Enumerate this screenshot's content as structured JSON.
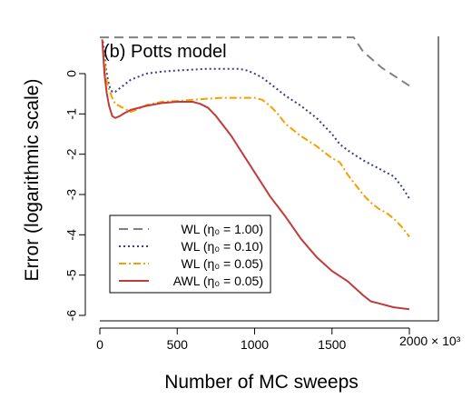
{
  "chart_data": {
    "type": "line",
    "panel_label": "(b) Potts model",
    "xlabel": "Number of MC sweeps",
    "ylabel": "Error (logarithmic scale)",
    "x_multiplier": "2000 × 10³",
    "x_ticks": [
      "0",
      "500",
      "1000",
      "1500",
      "2000"
    ],
    "y_ticks": [
      "0",
      "-1",
      "-2",
      "-3",
      "-4",
      "-5",
      "-6"
    ],
    "xlim": [
      0,
      2000
    ],
    "ylim": [
      -6.1,
      0.9
    ],
    "legend_position": "bottom-left",
    "series": [
      {
        "name": "WL  (η₀ = 1.00)",
        "color": "#808080",
        "dash": "long-dash",
        "x": [
          0,
          1640,
          1700,
          1760,
          1820,
          1880,
          1940,
          2000
        ],
        "y": [
          0.9,
          0.9,
          0.55,
          0.35,
          0.15,
          0.0,
          -0.15,
          -0.3
        ]
      },
      {
        "name": "WL  (η₀ = 0.10)",
        "color": "#3b3b8f",
        "dash": "dotted",
        "x": [
          20,
          40,
          60,
          80,
          100,
          150,
          200,
          300,
          400,
          500,
          600,
          700,
          800,
          900,
          950,
          1000,
          1050,
          1100,
          1150,
          1200,
          1300,
          1400,
          1500,
          1550,
          1600,
          1700,
          1800,
          1900,
          1950,
          2000
        ],
        "y": [
          0.8,
          0.1,
          -0.3,
          -0.45,
          -0.45,
          -0.3,
          -0.15,
          0.0,
          0.05,
          0.08,
          0.1,
          0.12,
          0.12,
          0.12,
          0.08,
          0.0,
          -0.1,
          -0.25,
          -0.4,
          -0.55,
          -0.8,
          -1.1,
          -1.5,
          -1.75,
          -1.9,
          -2.15,
          -2.35,
          -2.55,
          -2.8,
          -3.1
        ]
      },
      {
        "name": "WL  (η₀ = 0.05)",
        "color": "#f5a000",
        "dash": "dash-dot",
        "x": [
          20,
          40,
          60,
          80,
          100,
          150,
          200,
          250,
          300,
          400,
          500,
          600,
          700,
          800,
          900,
          1000,
          1050,
          1100,
          1150,
          1200,
          1300,
          1400,
          1500,
          1550,
          1600,
          1650,
          1700,
          1750,
          1800,
          1850,
          1900,
          1950,
          2000
        ],
        "y": [
          0.6,
          -0.1,
          -0.4,
          -0.6,
          -0.75,
          -0.85,
          -0.95,
          -0.88,
          -0.78,
          -0.7,
          -0.68,
          -0.65,
          -0.62,
          -0.6,
          -0.6,
          -0.6,
          -0.65,
          -0.8,
          -1.0,
          -1.25,
          -1.55,
          -1.8,
          -2.1,
          -2.2,
          -2.5,
          -2.75,
          -3.0,
          -3.2,
          -3.35,
          -3.45,
          -3.6,
          -3.8,
          -4.05
        ]
      },
      {
        "name": "AWL  (η₀ = 0.05)",
        "color": "#c23b3b",
        "dash": "solid",
        "x": [
          15,
          30,
          45,
          60,
          80,
          100,
          130,
          150,
          200,
          300,
          400,
          500,
          600,
          650,
          700,
          750,
          800,
          850,
          900,
          950,
          1000,
          1100,
          1200,
          1300,
          1400,
          1500,
          1600,
          1700,
          1750,
          1800,
          1900,
          2000
        ],
        "y": [
          0.85,
          0.0,
          -0.5,
          -0.8,
          -1.05,
          -1.1,
          -1.05,
          -1.0,
          -0.9,
          -0.8,
          -0.73,
          -0.7,
          -0.7,
          -0.75,
          -0.85,
          -1.05,
          -1.3,
          -1.55,
          -1.85,
          -2.15,
          -2.45,
          -3.05,
          -3.55,
          -4.1,
          -4.55,
          -4.9,
          -5.15,
          -5.5,
          -5.65,
          -5.7,
          -5.8,
          -5.85
        ]
      }
    ]
  }
}
